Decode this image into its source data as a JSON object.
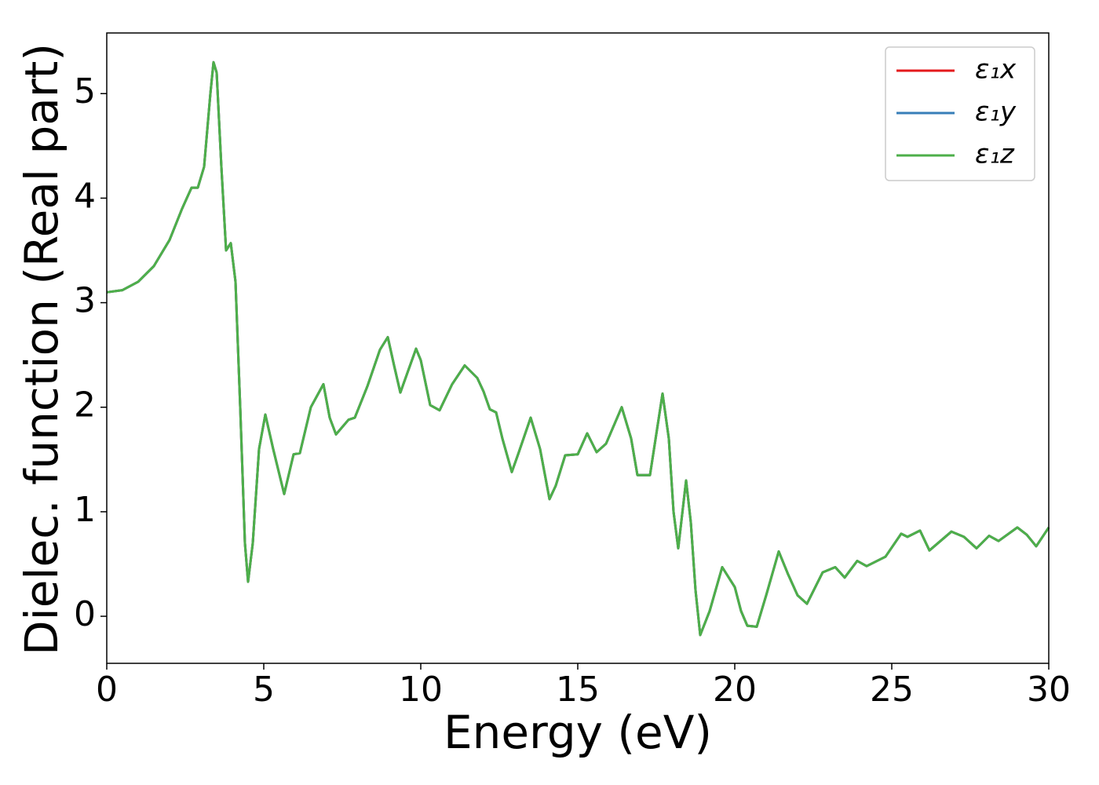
{
  "chart_data": {
    "type": "line",
    "x_label": "Energy (eV)",
    "y_label": "Dielec. function (Real part)",
    "x": [
      0,
      0.5,
      1.0,
      1.5,
      2.0,
      2.4,
      2.7,
      2.9,
      3.1,
      3.3,
      3.4,
      3.5,
      3.65,
      3.8,
      3.95,
      4.1,
      4.25,
      4.4,
      4.5,
      4.65,
      4.85,
      5.05,
      5.3,
      5.65,
      5.95,
      6.15,
      6.5,
      6.9,
      7.1,
      7.3,
      7.7,
      7.9,
      8.3,
      8.7,
      8.95,
      9.15,
      9.35,
      9.6,
      9.85,
      10.0,
      10.3,
      10.6,
      11.0,
      11.4,
      11.8,
      12.0,
      12.2,
      12.4,
      12.6,
      12.9,
      13.1,
      13.5,
      13.8,
      14.1,
      14.3,
      14.6,
      15.0,
      15.3,
      15.6,
      15.9,
      16.4,
      16.7,
      16.9,
      17.3,
      17.7,
      17.9,
      18.05,
      18.2,
      18.45,
      18.6,
      18.75,
      18.9,
      19.2,
      19.6,
      20.0,
      20.2,
      20.4,
      20.7,
      21.0,
      21.4,
      21.7,
      22.0,
      22.3,
      22.8,
      23.2,
      23.5,
      23.9,
      24.2,
      24.8,
      25.3,
      25.5,
      25.9,
      26.2,
      26.9,
      27.3,
      27.7,
      28.1,
      28.4,
      29.0,
      29.3,
      29.6,
      30.0
    ],
    "series": [
      {
        "name": "ε₁x",
        "color": "#e41a1c",
        "values": [
          3.1,
          3.12,
          3.2,
          3.35,
          3.6,
          3.9,
          4.1,
          4.1,
          4.3,
          5.0,
          5.3,
          5.2,
          4.3,
          3.5,
          3.57,
          3.2,
          2.0,
          0.7,
          0.33,
          0.7,
          1.6,
          1.93,
          1.6,
          1.17,
          1.55,
          1.56,
          2.0,
          2.22,
          1.9,
          1.74,
          1.88,
          1.9,
          2.2,
          2.55,
          2.67,
          2.4,
          2.14,
          2.35,
          2.56,
          2.45,
          2.02,
          1.97,
          2.22,
          2.4,
          2.28,
          2.15,
          1.98,
          1.95,
          1.7,
          1.38,
          1.55,
          1.9,
          1.6,
          1.12,
          1.25,
          1.54,
          1.55,
          1.75,
          1.57,
          1.65,
          2.0,
          1.7,
          1.35,
          1.35,
          2.13,
          1.7,
          1.0,
          0.65,
          1.3,
          0.9,
          0.25,
          -0.18,
          0.05,
          0.47,
          0.28,
          0.05,
          -0.09,
          -0.1,
          0.2,
          0.62,
          0.4,
          0.2,
          0.12,
          0.42,
          0.47,
          0.37,
          0.53,
          0.48,
          0.57,
          0.79,
          0.76,
          0.82,
          0.63,
          0.81,
          0.76,
          0.65,
          0.77,
          0.72,
          0.85,
          0.78,
          0.67,
          0.85
        ]
      },
      {
        "name": "ε₁y",
        "color": "#377eb8",
        "values": [
          3.1,
          3.12,
          3.2,
          3.35,
          3.6,
          3.9,
          4.1,
          4.1,
          4.3,
          5.0,
          5.3,
          5.2,
          4.3,
          3.5,
          3.57,
          3.2,
          2.0,
          0.7,
          0.33,
          0.7,
          1.6,
          1.93,
          1.6,
          1.17,
          1.55,
          1.56,
          2.0,
          2.22,
          1.9,
          1.74,
          1.88,
          1.9,
          2.2,
          2.55,
          2.67,
          2.4,
          2.14,
          2.35,
          2.56,
          2.45,
          2.02,
          1.97,
          2.22,
          2.4,
          2.28,
          2.15,
          1.98,
          1.95,
          1.7,
          1.38,
          1.55,
          1.9,
          1.6,
          1.12,
          1.25,
          1.54,
          1.55,
          1.75,
          1.57,
          1.65,
          2.0,
          1.7,
          1.35,
          1.35,
          2.13,
          1.7,
          1.0,
          0.65,
          1.3,
          0.9,
          0.25,
          -0.18,
          0.05,
          0.47,
          0.28,
          0.05,
          -0.09,
          -0.1,
          0.2,
          0.62,
          0.4,
          0.2,
          0.12,
          0.42,
          0.47,
          0.37,
          0.53,
          0.48,
          0.57,
          0.79,
          0.76,
          0.82,
          0.63,
          0.81,
          0.76,
          0.65,
          0.77,
          0.72,
          0.85,
          0.78,
          0.67,
          0.85
        ]
      },
      {
        "name": "ε₁z",
        "color": "#4daf4a",
        "values": [
          3.1,
          3.12,
          3.2,
          3.35,
          3.6,
          3.9,
          4.1,
          4.1,
          4.3,
          5.0,
          5.3,
          5.2,
          4.3,
          3.5,
          3.57,
          3.2,
          2.0,
          0.7,
          0.33,
          0.7,
          1.6,
          1.93,
          1.6,
          1.17,
          1.55,
          1.56,
          2.0,
          2.22,
          1.9,
          1.74,
          1.88,
          1.9,
          2.2,
          2.55,
          2.67,
          2.4,
          2.14,
          2.35,
          2.56,
          2.45,
          2.02,
          1.97,
          2.22,
          2.4,
          2.28,
          2.15,
          1.98,
          1.95,
          1.7,
          1.38,
          1.55,
          1.9,
          1.6,
          1.12,
          1.25,
          1.54,
          1.55,
          1.75,
          1.57,
          1.65,
          2.0,
          1.7,
          1.35,
          1.35,
          2.13,
          1.7,
          1.0,
          0.65,
          1.3,
          0.9,
          0.25,
          -0.18,
          0.05,
          0.47,
          0.28,
          0.05,
          -0.09,
          -0.1,
          0.2,
          0.62,
          0.4,
          0.2,
          0.12,
          0.42,
          0.47,
          0.37,
          0.53,
          0.48,
          0.57,
          0.79,
          0.76,
          0.82,
          0.63,
          0.81,
          0.76,
          0.65,
          0.77,
          0.72,
          0.85,
          0.78,
          0.67,
          0.85
        ]
      }
    ],
    "xlim": [
      0,
      30
    ],
    "xticks": [
      0,
      5,
      10,
      15,
      20,
      25,
      30
    ],
    "ylim": [
      -0.45,
      5.58
    ],
    "yticks": [
      0,
      1,
      2,
      3,
      4,
      5
    ],
    "grid": false,
    "legend": "upper right"
  }
}
